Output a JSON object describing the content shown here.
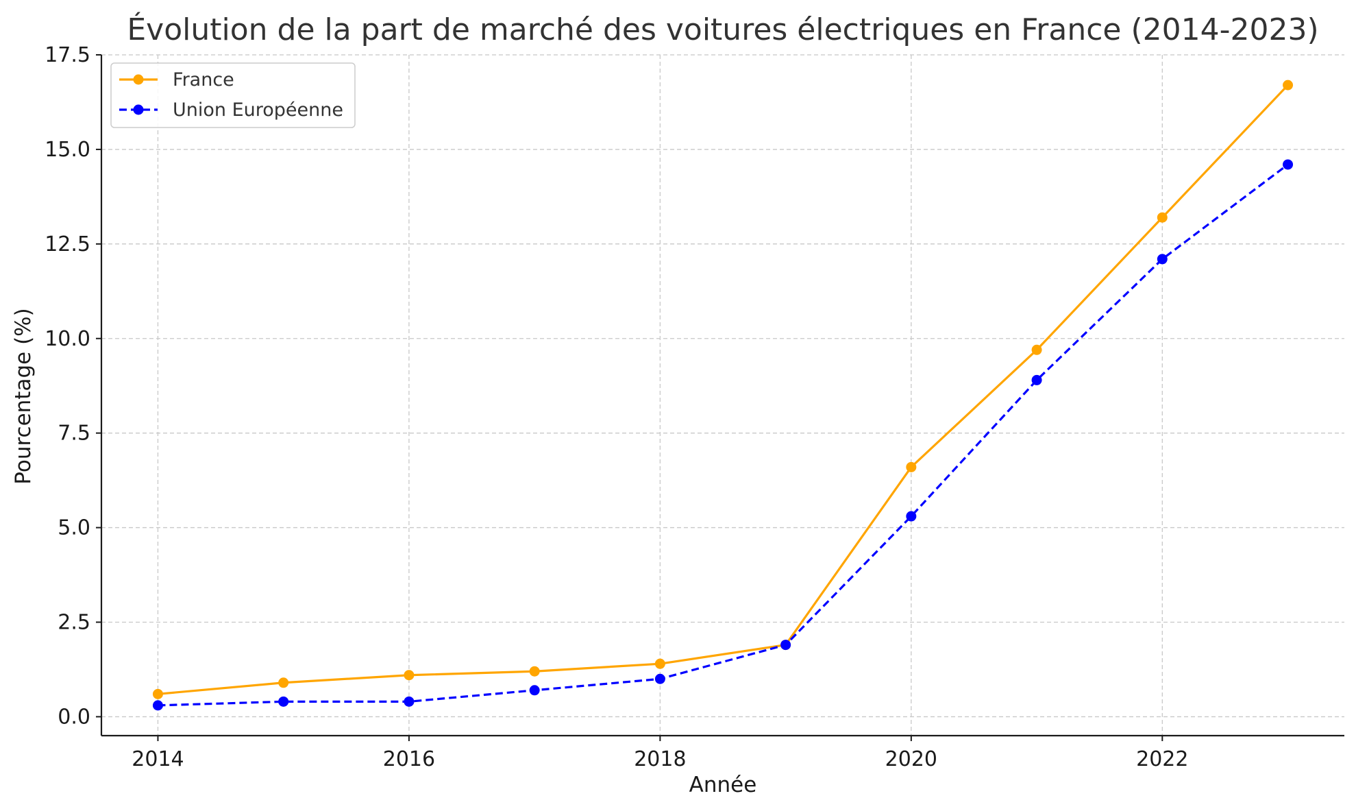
{
  "chart_data": {
    "type": "line",
    "title": "Évolution de la part de marché des voitures électriques en France (2014-2023)",
    "xlabel": "Année",
    "ylabel": "Pourcentage (%)",
    "x": [
      2014,
      2015,
      2016,
      2017,
      2018,
      2019,
      2020,
      2021,
      2022,
      2023
    ],
    "xlim": [
      2013.55,
      2023.45
    ],
    "ylim": [
      -0.5,
      17.5
    ],
    "xticks": [
      "2014",
      "2016",
      "2018",
      "2020",
      "2022"
    ],
    "yticks": [
      "0.0",
      "2.5",
      "5.0",
      "7.5",
      "10.0",
      "12.5",
      "15.0",
      "17.5"
    ],
    "grid": true,
    "legend_position": "top-left",
    "series": [
      {
        "name": "France",
        "values": [
          0.6,
          0.9,
          1.1,
          1.2,
          1.4,
          1.9,
          6.6,
          9.7,
          13.2,
          16.7
        ],
        "color": "#FFA500",
        "line_style": "solid",
        "marker": "circle"
      },
      {
        "name": "Union Européenne",
        "values": [
          0.3,
          0.4,
          0.4,
          0.7,
          1.0,
          1.9,
          5.3,
          8.9,
          12.1,
          14.6
        ],
        "color": "#0000FF",
        "line_style": "dashed",
        "marker": "circle"
      }
    ]
  }
}
